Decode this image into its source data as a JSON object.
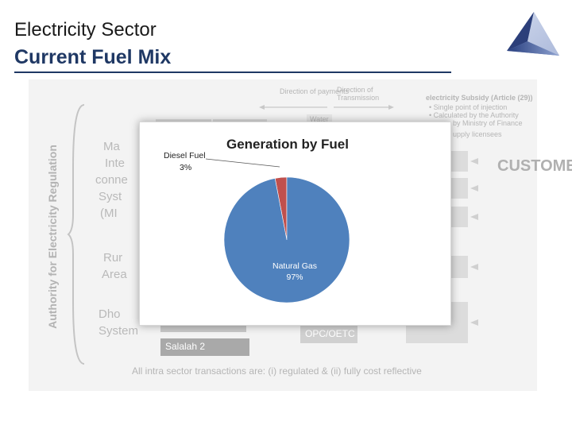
{
  "header": {
    "section_title": "Electricity Sector",
    "title": "Current Fuel Mix"
  },
  "background_diagram": {
    "vertical_label": "Authority for Electricity Regulation",
    "direction_payments": "Direction of payments",
    "direction_transmission": "Direction of Transmission",
    "water": "Water",
    "systems": [
      {
        "name": "Main Interconnected System (MIS)",
        "lines": [
          "Ma",
          "Inte",
          "conne",
          "Syst",
          "(MI"
        ]
      },
      {
        "name": "Rural Areas",
        "lines": [
          "Rur",
          "Area"
        ]
      },
      {
        "name": "Dhofar System",
        "lines": [
          "Dho",
          "System"
        ]
      }
    ],
    "salalah_2": "Salalah 2",
    "opc_oetc": "OPC/OETC",
    "subsidy_title": "electricity Subsidy (Article (29))",
    "subsidy_bullets": [
      "Single point of injection",
      "Calculated by the Authority",
      "by Ministry of Finance",
      "upply licensees"
    ],
    "customers": "CUSTOMERS",
    "bottom_note": "All intra sector transactions are: (i) regulated & (ii) fully cost reflective"
  },
  "chart_data": {
    "type": "pie",
    "title": "Generation by Fuel",
    "slices": [
      {
        "label": "Diesel Fuel",
        "value": 3,
        "value_label": "3%",
        "color": "#c0504d"
      },
      {
        "label": "Natural Gas",
        "value": 97,
        "value_label": "97%",
        "color": "#4f81bd"
      }
    ]
  }
}
